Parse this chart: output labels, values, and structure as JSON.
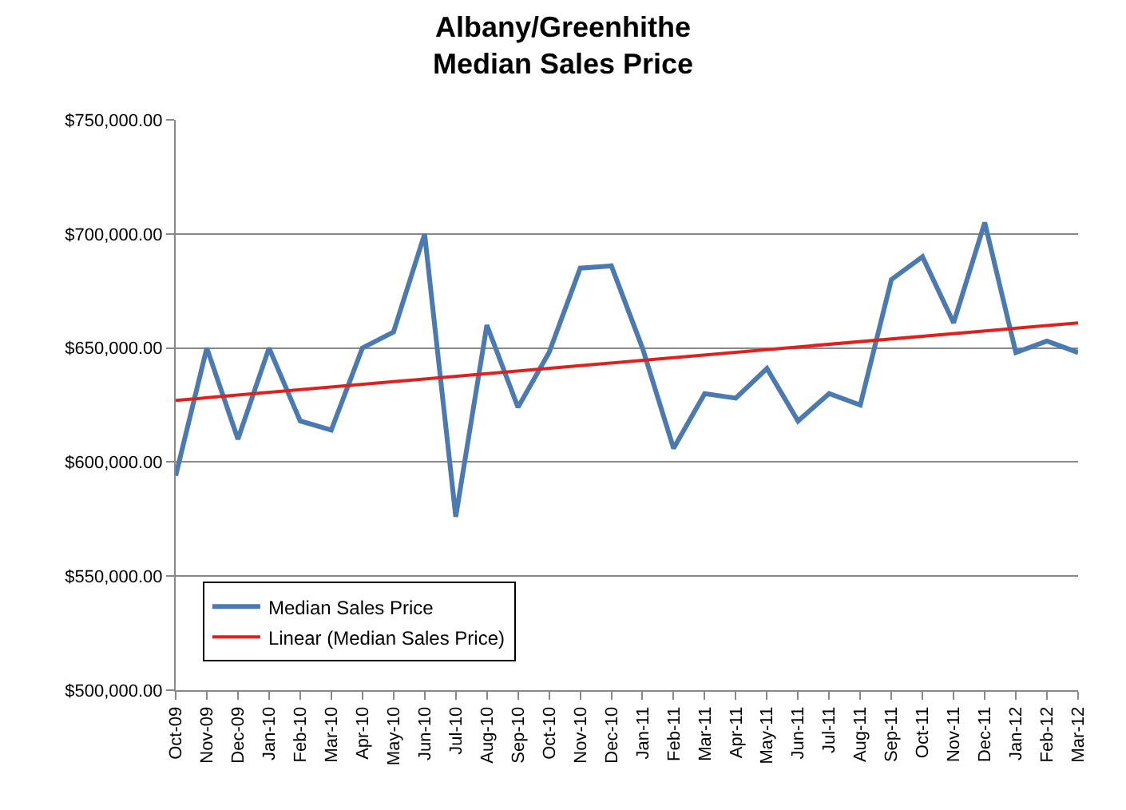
{
  "chart_data": {
    "type": "line",
    "title": "Albany/Greenhithe\nMedian Sales Price",
    "categories": [
      "Oct-09",
      "Nov-09",
      "Dec-09",
      "Jan-10",
      "Feb-10",
      "Mar-10",
      "Apr-10",
      "May-10",
      "Jun-10",
      "Jul-10",
      "Aug-10",
      "Sep-10",
      "Oct-10",
      "Nov-10",
      "Dec-10",
      "Jan-11",
      "Feb-11",
      "Mar-11",
      "Apr-11",
      "May-11",
      "Jun-11",
      "Jul-11",
      "Aug-11",
      "Sep-11",
      "Oct-11",
      "Nov-11",
      "Dec-11",
      "Jan-12",
      "Feb-12",
      "Mar-12"
    ],
    "series": [
      {
        "name": "Median Sales Price",
        "color": "#4a7ab0",
        "values": [
          594000,
          650000,
          610000,
          650000,
          618000,
          614000,
          650000,
          657000,
          700000,
          576000,
          660000,
          624000,
          648000,
          685000,
          686000,
          650000,
          606000,
          630000,
          628000,
          641000,
          618000,
          630000,
          625000,
          680000,
          690000,
          661000,
          705000,
          648000,
          653000,
          648000
        ]
      },
      {
        "name": "Linear (Median Sales Price)",
        "color": "#e0201c",
        "type": "line",
        "x": [
          "Oct-09",
          "Mar-12"
        ],
        "values": [
          627000,
          661000
        ]
      }
    ],
    "ylim": [
      500000,
      750000
    ],
    "yticks": [
      {
        "value": 500000,
        "label": "$500,000.00"
      },
      {
        "value": 550000,
        "label": "$550,000.00"
      },
      {
        "value": 600000,
        "label": "$600,000.00"
      },
      {
        "value": 650000,
        "label": "$650,000.00"
      },
      {
        "value": 700000,
        "label": "$700,000.00"
      },
      {
        "value": 750000,
        "label": "$750,000.00"
      }
    ],
    "grid": "y",
    "legend": "bottom left",
    "marker": "none",
    "line_style": "solid"
  }
}
